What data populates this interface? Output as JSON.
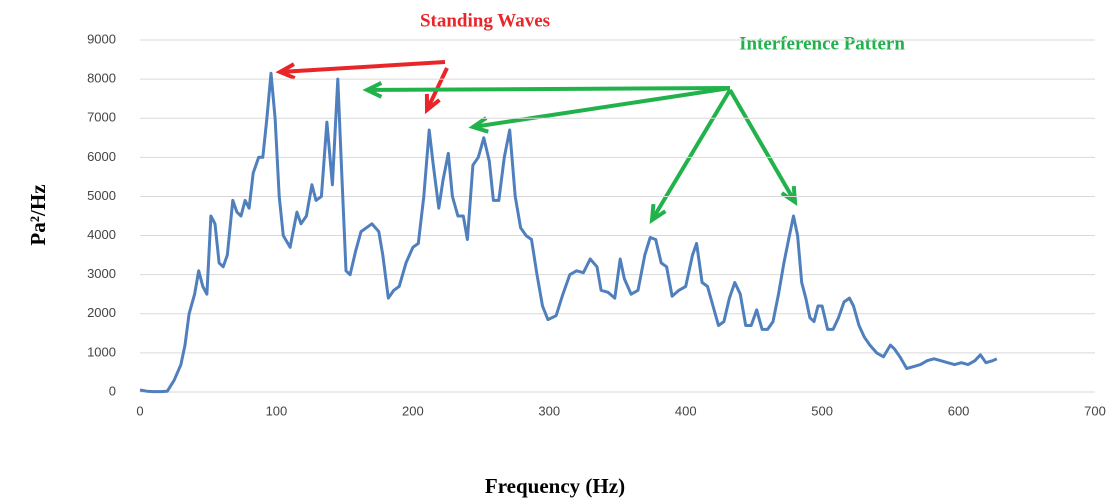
{
  "chart_data": {
    "type": "line",
    "xlabel": "Frequency (Hz)",
    "ylabel": "Pa²/Hz",
    "annotations": [
      {
        "text": "Standing Waves",
        "color": "#e8262a"
      },
      {
        "text": "Interference Pattern",
        "color": "#22b24c"
      }
    ],
    "color": "#4f7fbd",
    "grid": true,
    "xlim": [
      0,
      700
    ],
    "xticks": [
      0,
      100,
      200,
      300,
      400,
      500,
      600,
      700
    ],
    "ylim": [
      0,
      9000
    ],
    "yticks": [
      0,
      1000,
      2000,
      3000,
      4000,
      5000,
      6000,
      7000,
      8000,
      9000
    ],
    "x": [
      0,
      5,
      10,
      15,
      20,
      25,
      30,
      33,
      36,
      40,
      43,
      46,
      49,
      52,
      55,
      58,
      61,
      64,
      68,
      71,
      74,
      77,
      80,
      83,
      87,
      90,
      93,
      96,
      99,
      102,
      105,
      110,
      115,
      118,
      122,
      126,
      129,
      133,
      137,
      141,
      145,
      148,
      151,
      154,
      158,
      162,
      166,
      170,
      175,
      178,
      182,
      186,
      190,
      195,
      200,
      204,
      208,
      212,
      215,
      219,
      222,
      226,
      229,
      233,
      237,
      240,
      244,
      248,
      252,
      256,
      259,
      263,
      267,
      271,
      275,
      279,
      283,
      287,
      291,
      295,
      299,
      305,
      310,
      315,
      320,
      325,
      330,
      335,
      338,
      343,
      348,
      352,
      355,
      360,
      365,
      370,
      374,
      378,
      382,
      386,
      390,
      395,
      400,
      405,
      408,
      412,
      416,
      420,
      424,
      428,
      432,
      436,
      440,
      444,
      448,
      452,
      456,
      460,
      464,
      468,
      472,
      476,
      479,
      482,
      485,
      488,
      491,
      494,
      497,
      500,
      504,
      508,
      512,
      516,
      520,
      523,
      527,
      531,
      535,
      540,
      545,
      550,
      553,
      557,
      562,
      567,
      572,
      577,
      582,
      587,
      592,
      597,
      602,
      607,
      612,
      616,
      620,
      625,
      628
    ],
    "values": [
      50,
      20,
      10,
      10,
      20,
      300,
      700,
      1200,
      2000,
      2500,
      3100,
      2700,
      2500,
      4500,
      4300,
      3300,
      3200,
      3500,
      4900,
      4600,
      4500,
      4900,
      4700,
      5600,
      6000,
      6000,
      7000,
      8150,
      7000,
      5000,
      4000,
      3700,
      4600,
      4300,
      4500,
      5300,
      4900,
      5000,
      6900,
      5300,
      8000,
      5500,
      3100,
      3000,
      3600,
      4100,
      4200,
      4300,
      4100,
      3500,
      2400,
      2600,
      2700,
      3300,
      3700,
      3800,
      5000,
      6700,
      5800,
      4700,
      5400,
      6100,
      5000,
      4500,
      4500,
      3900,
      5800,
      6000,
      6500,
      5900,
      4900,
      4900,
      6000,
      6700,
      5000,
      4200,
      4000,
      3900,
      3000,
      2200,
      1850,
      1950,
      2500,
      3000,
      3100,
      3050,
      3400,
      3200,
      2600,
      2550,
      2400,
      3400,
      2900,
      2500,
      2600,
      3500,
      3950,
      3900,
      3300,
      3200,
      2450,
      2600,
      2700,
      3500,
      3800,
      2800,
      2700,
      2200,
      1700,
      1800,
      2400,
      2800,
      2500,
      1700,
      1700,
      2100,
      1600,
      1600,
      1800,
      2500,
      3300,
      4000,
      4500,
      4000,
      2800,
      2400,
      1900,
      1800,
      2200,
      2200,
      1600,
      1600,
      1900,
      2300,
      2400,
      2200,
      1700,
      1400,
      1200,
      1000,
      900,
      1200,
      1100,
      900,
      600,
      650,
      700,
      800,
      850,
      800,
      750,
      700,
      750,
      700,
      800,
      950,
      750,
      800,
      850
    ]
  }
}
